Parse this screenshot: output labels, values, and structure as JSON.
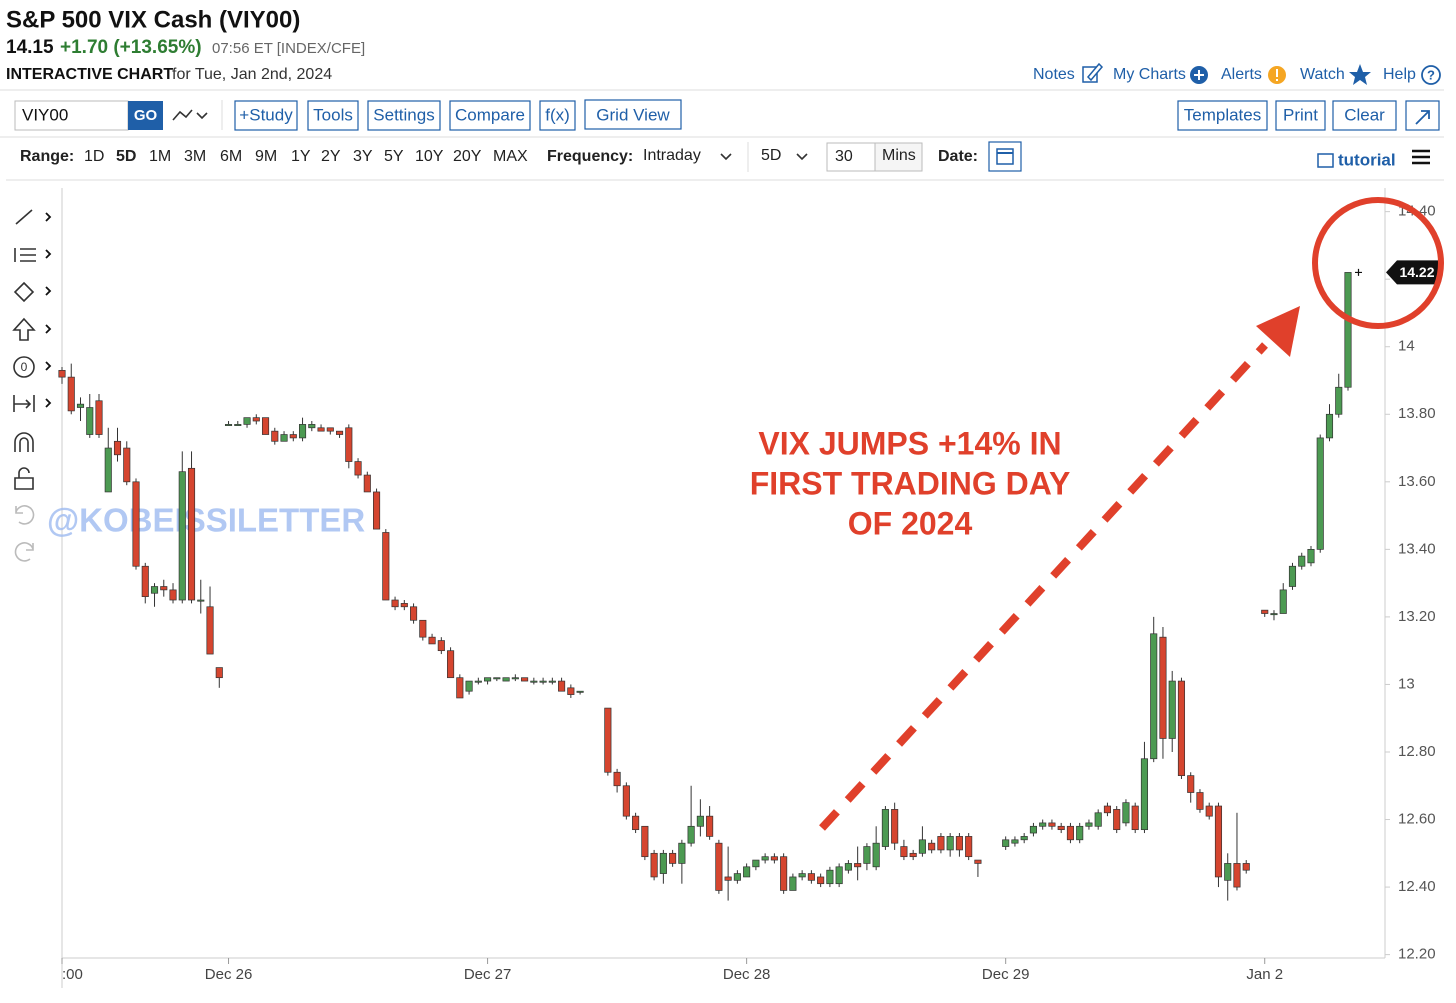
{
  "header": {
    "title": "S&P 500 VIX Cash (VIY00)",
    "last": "14.15",
    "change": "+1.70 (+13.65%)",
    "time": "07:56 ET [INDEX/CFE]",
    "chart_label": "INTERACTIVE CHART",
    "chart_date": "for Tue, Jan 2nd, 2024",
    "links": [
      "Notes",
      "My Charts",
      "Alerts",
      "Watch",
      "Help"
    ]
  },
  "toolbar": {
    "symbol": "VIY00",
    "go": "GO",
    "left_buttons": [
      "+Study",
      "Tools",
      "Settings",
      "Compare",
      "f(x)",
      "Grid View"
    ],
    "right_buttons": [
      "Templates",
      "Print",
      "Clear"
    ]
  },
  "range_bar": {
    "range_label": "Range:",
    "ranges": [
      "1D",
      "5D",
      "1M",
      "3M",
      "6M",
      "9M",
      "1Y",
      "2Y",
      "3Y",
      "5Y",
      "10Y",
      "20Y",
      "MAX"
    ],
    "frequency_label": "Frequency:",
    "frequency": "Intraday",
    "period": "5D",
    "interval": "30",
    "interval_unit": "Mins",
    "date_label": "Date:",
    "tutorial": "tutorial"
  },
  "chart_data": {
    "type": "candlestick",
    "up_color": "#4c9a52",
    "down_color": "#d5452f",
    "x": [
      0,
      1,
      2,
      3,
      4,
      5,
      6,
      7,
      8,
      9,
      10,
      11,
      12,
      13,
      14,
      15,
      16,
      17,
      18,
      19,
      20,
      21,
      22,
      23,
      24,
      25,
      26,
      27,
      28,
      29,
      30,
      31,
      32,
      33,
      34,
      35,
      36,
      37,
      38,
      39,
      40,
      41,
      42,
      43,
      44,
      45,
      46,
      47,
      48,
      49,
      50,
      51,
      52,
      53,
      54,
      55,
      56,
      59,
      60,
      61,
      62,
      63,
      64,
      65,
      66,
      67,
      68,
      69,
      70,
      71,
      72,
      73,
      74,
      75,
      76,
      77,
      78,
      79,
      80,
      81,
      82,
      83,
      84,
      85,
      86,
      87,
      88,
      89,
      90,
      91,
      92,
      93,
      94,
      95,
      96,
      97,
      98,
      99,
      102,
      103,
      104,
      105,
      106,
      107,
      108,
      109,
      110,
      111,
      112,
      113,
      114,
      115,
      116,
      117,
      118,
      119,
      120,
      121,
      122,
      123,
      124,
      125,
      126,
      127,
      128,
      130,
      131,
      132,
      133,
      134,
      135,
      136,
      137,
      138,
      139
    ],
    "open": [
      13.93,
      13.91,
      13.82,
      13.74,
      13.84,
      13.57,
      13.72,
      13.7,
      13.6,
      13.35,
      13.27,
      13.29,
      13.28,
      13.25,
      13.64,
      13.25,
      13.23,
      13.05,
      13.77,
      13.77,
      13.77,
      13.79,
      13.79,
      13.75,
      13.72,
      13.74,
      13.73,
      13.76,
      13.76,
      13.76,
      13.75,
      13.76,
      13.66,
      13.62,
      13.57,
      13.45,
      13.25,
      13.24,
      13.23,
      13.19,
      13.14,
      13.13,
      13.1,
      13.02,
      12.98,
      13.01,
      13.01,
      13.02,
      13.01,
      13.02,
      13.02,
      13.01,
      13.01,
      13.01,
      13.01,
      12.99,
      12.98,
      12.93,
      12.74,
      12.7,
      12.61,
      12.58,
      12.5,
      12.44,
      12.5,
      12.47,
      12.53,
      12.58,
      12.61,
      12.53,
      12.43,
      12.42,
      12.43,
      12.46,
      12.48,
      12.49,
      12.49,
      12.39,
      12.43,
      12.44,
      12.43,
      12.41,
      12.41,
      12.45,
      12.47,
      12.47,
      12.46,
      12.52,
      12.63,
      12.52,
      12.5,
      12.5,
      12.53,
      12.55,
      12.51,
      12.55,
      12.55,
      12.48,
      12.52,
      12.53,
      12.54,
      12.56,
      12.58,
      12.59,
      12.58,
      12.58,
      12.54,
      12.58,
      12.58,
      12.64,
      12.63,
      12.59,
      12.64,
      12.57,
      12.78,
      13.14,
      12.84,
      13.01,
      12.73,
      12.68,
      12.64,
      12.64,
      12.42,
      12.47,
      12.47,
      13.22,
      13.21,
      13.21,
      13.29,
      13.35,
      13.36,
      13.4,
      13.73,
      13.8,
      13.88
    ],
    "high": [
      13.94,
      13.95,
      13.85,
      13.86,
      13.86,
      13.76,
      13.76,
      13.72,
      13.61,
      13.36,
      13.3,
      13.31,
      13.3,
      13.69,
      13.69,
      13.31,
      13.29,
      13.05,
      13.78,
      13.78,
      13.79,
      13.8,
      13.79,
      13.76,
      13.75,
      13.75,
      13.79,
      13.78,
      13.77,
      13.76,
      13.75,
      13.77,
      13.67,
      13.63,
      13.58,
      13.46,
      13.26,
      13.25,
      13.24,
      13.19,
      13.15,
      13.14,
      13.11,
      13.03,
      13.01,
      13.02,
      13.02,
      13.02,
      13.02,
      13.03,
      13.02,
      13.02,
      13.02,
      13.02,
      13.02,
      13.0,
      12.98,
      12.93,
      12.75,
      12.71,
      12.62,
      12.58,
      12.51,
      12.51,
      12.51,
      12.54,
      12.7,
      12.66,
      12.64,
      12.54,
      12.52,
      12.45,
      12.47,
      12.48,
      12.5,
      12.5,
      12.5,
      12.44,
      12.45,
      12.45,
      12.44,
      12.46,
      12.47,
      12.48,
      12.52,
      12.53,
      12.58,
      12.64,
      12.65,
      12.54,
      12.51,
      12.58,
      12.54,
      12.56,
      12.56,
      12.56,
      12.56,
      12.48,
      12.55,
      12.55,
      12.56,
      12.59,
      12.6,
      12.6,
      12.59,
      12.59,
      12.59,
      12.6,
      12.63,
      12.65,
      12.64,
      12.66,
      12.65,
      12.83,
      13.2,
      13.17,
      13.04,
      13.02,
      12.74,
      12.69,
      12.65,
      12.65,
      12.5,
      12.62,
      12.48,
      13.22,
      13.22,
      13.3,
      13.36,
      13.39,
      13.41,
      13.74,
      13.83,
      13.92,
      14.22
    ],
    "low": [
      13.89,
      13.8,
      13.78,
      13.73,
      13.73,
      13.57,
      13.66,
      13.59,
      13.34,
      13.24,
      13.23,
      13.26,
      13.24,
      13.24,
      13.24,
      13.21,
      13.09,
      12.99,
      13.77,
      13.77,
      13.76,
      13.77,
      13.74,
      13.71,
      13.72,
      13.72,
      13.72,
      13.75,
      13.75,
      13.74,
      13.73,
      13.64,
      13.61,
      13.57,
      13.46,
      13.25,
      13.22,
      13.22,
      13.18,
      13.13,
      13.12,
      13.09,
      13.02,
      12.96,
      12.97,
      13.0,
      13.0,
      13.01,
      13.01,
      13.01,
      13.01,
      13.0,
      13.0,
      13.0,
      12.98,
      12.96,
      12.97,
      12.73,
      12.68,
      12.6,
      12.56,
      12.48,
      12.42,
      12.41,
      12.46,
      12.41,
      12.52,
      12.55,
      12.54,
      12.38,
      12.36,
      12.41,
      12.43,
      12.45,
      12.47,
      12.47,
      12.38,
      12.39,
      12.42,
      12.41,
      12.4,
      12.4,
      12.4,
      12.44,
      12.42,
      12.45,
      12.45,
      12.51,
      12.51,
      12.48,
      12.48,
      12.49,
      12.5,
      12.5,
      12.49,
      12.49,
      12.48,
      12.43,
      12.51,
      12.52,
      12.53,
      12.55,
      12.57,
      12.57,
      12.56,
      12.53,
      12.53,
      12.57,
      12.57,
      12.61,
      12.56,
      12.58,
      12.56,
      12.56,
      12.77,
      12.78,
      12.8,
      12.72,
      12.65,
      12.62,
      12.6,
      12.4,
      12.36,
      12.39,
      12.44,
      13.2,
      13.19,
      13.21,
      13.28,
      13.34,
      13.35,
      13.39,
      13.72,
      13.79,
      13.87
    ],
    "close": [
      13.91,
      13.81,
      13.83,
      13.82,
      13.74,
      13.7,
      13.68,
      13.6,
      13.35,
      13.26,
      13.29,
      13.28,
      13.25,
      13.63,
      13.25,
      13.25,
      13.09,
      13.02,
      13.77,
      13.77,
      13.79,
      13.78,
      13.74,
      13.72,
      13.74,
      13.73,
      13.77,
      13.77,
      13.75,
      13.75,
      13.74,
      13.66,
      13.62,
      13.57,
      13.46,
      13.25,
      13.23,
      13.23,
      13.19,
      13.14,
      13.12,
      13.1,
      13.02,
      12.96,
      13.01,
      13.01,
      13.02,
      13.02,
      13.02,
      13.02,
      13.01,
      13.01,
      13.01,
      13.01,
      12.98,
      12.97,
      12.98,
      12.74,
      12.7,
      12.61,
      12.57,
      12.49,
      12.43,
      12.5,
      12.47,
      12.53,
      12.58,
      12.61,
      12.55,
      12.39,
      12.42,
      12.44,
      12.46,
      12.48,
      12.49,
      12.48,
      12.39,
      12.43,
      12.44,
      12.42,
      12.41,
      12.45,
      12.46,
      12.47,
      12.46,
      12.52,
      12.53,
      12.63,
      12.53,
      12.49,
      12.49,
      12.54,
      12.51,
      12.51,
      12.55,
      12.51,
      12.49,
      12.47,
      12.54,
      12.54,
      12.55,
      12.58,
      12.59,
      12.58,
      12.57,
      12.54,
      12.58,
      12.59,
      12.62,
      12.62,
      12.57,
      12.65,
      12.57,
      12.78,
      13.15,
      12.84,
      13.01,
      12.73,
      12.68,
      12.63,
      12.61,
      12.43,
      12.47,
      12.4,
      12.45,
      13.21,
      13.21,
      13.28,
      13.35,
      13.38,
      13.4,
      13.73,
      13.8,
      13.88,
      14.22
    ],
    "xlim": [
      0,
      143
    ],
    "xticks": [
      {
        "value": 0,
        "label": ":00"
      },
      {
        "value": 18,
        "label": "Dec 26"
      },
      {
        "value": 46,
        "label": "Dec 27"
      },
      {
        "value": 74,
        "label": "Dec 28"
      },
      {
        "value": 102,
        "label": "Dec 29"
      },
      {
        "value": 130,
        "label": "Jan 2"
      }
    ],
    "ylim": [
      12.19,
      14.47
    ],
    "yticks": [
      {
        "value": 12.2,
        "label": "12.20"
      },
      {
        "value": 12.4,
        "label": "12.40"
      },
      {
        "value": 12.6,
        "label": "12.60"
      },
      {
        "value": 12.8,
        "label": "12.80"
      },
      13,
      {
        "value": 13.2,
        "label": "13.20"
      },
      {
        "value": 13.4,
        "label": "13.40"
      },
      {
        "value": 13.6,
        "label": "13.60"
      },
      {
        "value": 13.8,
        "label": "13.80"
      },
      14,
      {
        "value": 14.2,
        "label": "14.20"
      },
      {
        "value": 14.4,
        "label": "14.40"
      }
    ],
    "grid": false,
    "annotation": [
      "VIX JUMPS +14% IN",
      "FIRST TRADING DAY",
      "OF 2024"
    ],
    "watermark": "@KOBEISSILETTER"
  }
}
